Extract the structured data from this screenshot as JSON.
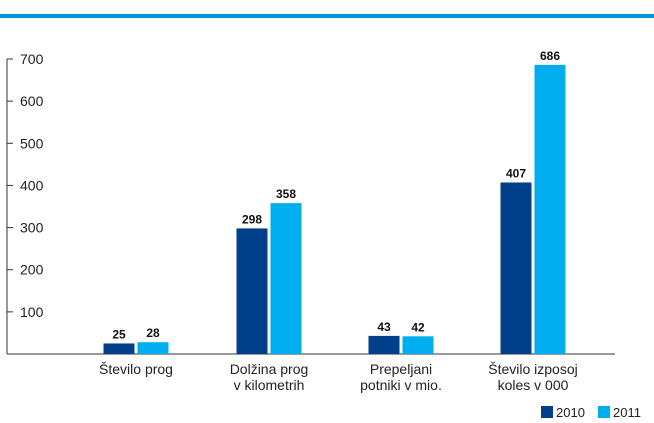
{
  "colors": {
    "rule": "#0096d6",
    "series_2010": "#003f8a",
    "series_2011": "#00aeef",
    "axis": "#333333"
  },
  "chart_data": {
    "type": "bar",
    "title": "",
    "xlabel": "",
    "ylabel": "",
    "ylim": [
      0,
      700
    ],
    "yticks": [
      100,
      200,
      300,
      400,
      500,
      600,
      700
    ],
    "grid": false,
    "legend_position": "bottom-right",
    "categories": [
      [
        "Število prog"
      ],
      [
        "Dolžina prog",
        "v kilometrih"
      ],
      [
        "Prepeljani",
        "potniki v mio."
      ],
      [
        "Število izposoj",
        "koles v 000"
      ]
    ],
    "series": [
      {
        "name": "2010",
        "values": [
          25,
          298,
          43,
          407
        ]
      },
      {
        "name": "2011",
        "values": [
          28,
          358,
          42,
          686
        ]
      }
    ]
  }
}
